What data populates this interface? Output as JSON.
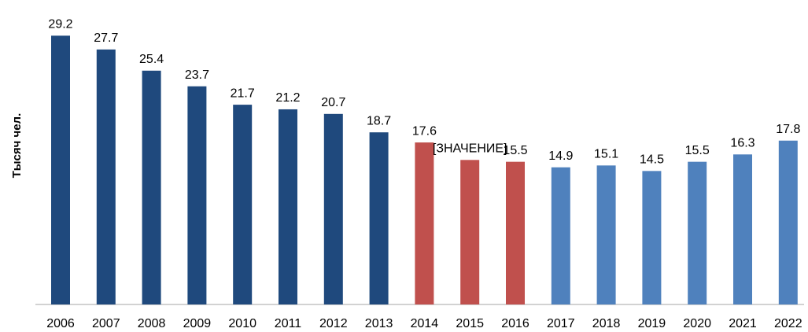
{
  "chart_data": {
    "type": "bar",
    "y_label": "Тысяч чел.",
    "categories": [
      "2006",
      "2007",
      "2008",
      "2009",
      "2010",
      "2011",
      "2012",
      "2013",
      "2014",
      "2015",
      "2016",
      "2017",
      "2018",
      "2019",
      "2020",
      "2021",
      "2022"
    ],
    "values": [
      29.2,
      27.7,
      25.4,
      23.7,
      21.7,
      21.2,
      20.7,
      18.7,
      17.6,
      15.7,
      15.5,
      14.9,
      15.1,
      14.5,
      15.5,
      16.3,
      17.8
    ],
    "value_labels": [
      "29.2",
      "27.7",
      "25.4",
      "23.7",
      "21.7",
      "21.2",
      "20.7",
      "18.7",
      "17.6",
      "[ЗНАЧЕНИЕ]",
      "15.5",
      "14.9",
      "15.1",
      "14.5",
      "15.5",
      "16.3",
      "17.8"
    ],
    "colors": [
      "#1f497d",
      "#1f497d",
      "#1f497d",
      "#1f497d",
      "#1f497d",
      "#1f497d",
      "#1f497d",
      "#1f497d",
      "#c0504d",
      "#c0504d",
      "#c0504d",
      "#4f81bd",
      "#4f81bd",
      "#4f81bd",
      "#4f81bd",
      "#4f81bd",
      "#4f81bd"
    ],
    "ylim": [
      0,
      30
    ]
  }
}
